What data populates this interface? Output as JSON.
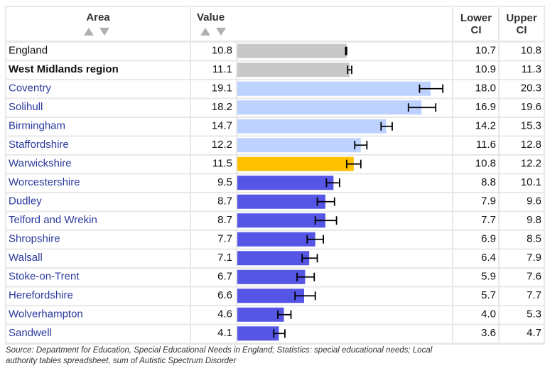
{
  "chart_data": {
    "type": "bar",
    "columns": {
      "area": "Area",
      "value": "Value",
      "lower": "Lower CI",
      "upper": "Upper CI"
    },
    "categories": [
      "England",
      "West Midlands region",
      "Coventry",
      "Solihull",
      "Birmingham",
      "Staffordshire",
      "Warwickshire",
      "Worcestershire",
      "Dudley",
      "Telford and Wrekin",
      "Shropshire",
      "Walsall",
      "Stoke-on-Trent",
      "Herefordshire",
      "Wolverhampton",
      "Sandwell"
    ],
    "values": [
      10.8,
      11.1,
      19.1,
      18.2,
      14.7,
      12.2,
      11.5,
      9.5,
      8.7,
      8.7,
      7.7,
      7.1,
      6.7,
      6.6,
      4.6,
      4.1
    ],
    "lower_ci": [
      10.7,
      10.9,
      18.0,
      16.9,
      14.2,
      11.6,
      10.8,
      8.8,
      7.9,
      7.7,
      6.9,
      6.4,
      5.9,
      5.7,
      4.0,
      3.6
    ],
    "lower_ci_labels": [
      "10.7",
      "10.9",
      "18.0",
      "16.9",
      "14.2",
      "11.6",
      "10.8",
      "8.8",
      "7.9",
      "7.7",
      "6.9",
      "6.4",
      "5.9",
      "5.7",
      "4.0",
      "3.6"
    ],
    "upper_ci": [
      10.8,
      11.3,
      20.3,
      19.6,
      15.3,
      12.8,
      12.2,
      10.1,
      9.6,
      9.8,
      8.5,
      7.9,
      7.6,
      7.7,
      5.3,
      4.7
    ],
    "colors": [
      "#c8c8c8",
      "#c8c8c8",
      "#bed2ff",
      "#bed2ff",
      "#bed2ff",
      "#bed2ff",
      "#ffc000",
      "#5555e6",
      "#5555e6",
      "#5555e6",
      "#5555e6",
      "#5555e6",
      "#5555e6",
      "#5555e6",
      "#5555e6",
      "#5555e6"
    ],
    "xlim": [
      0,
      21.2
    ],
    "source": [
      "Source: Department for Education, Special Educational Needs in England; Statistics: special educational needs; Local",
      "authority tables spreadsheet, sum of Autistic Spectrum Disorder"
    ]
  }
}
